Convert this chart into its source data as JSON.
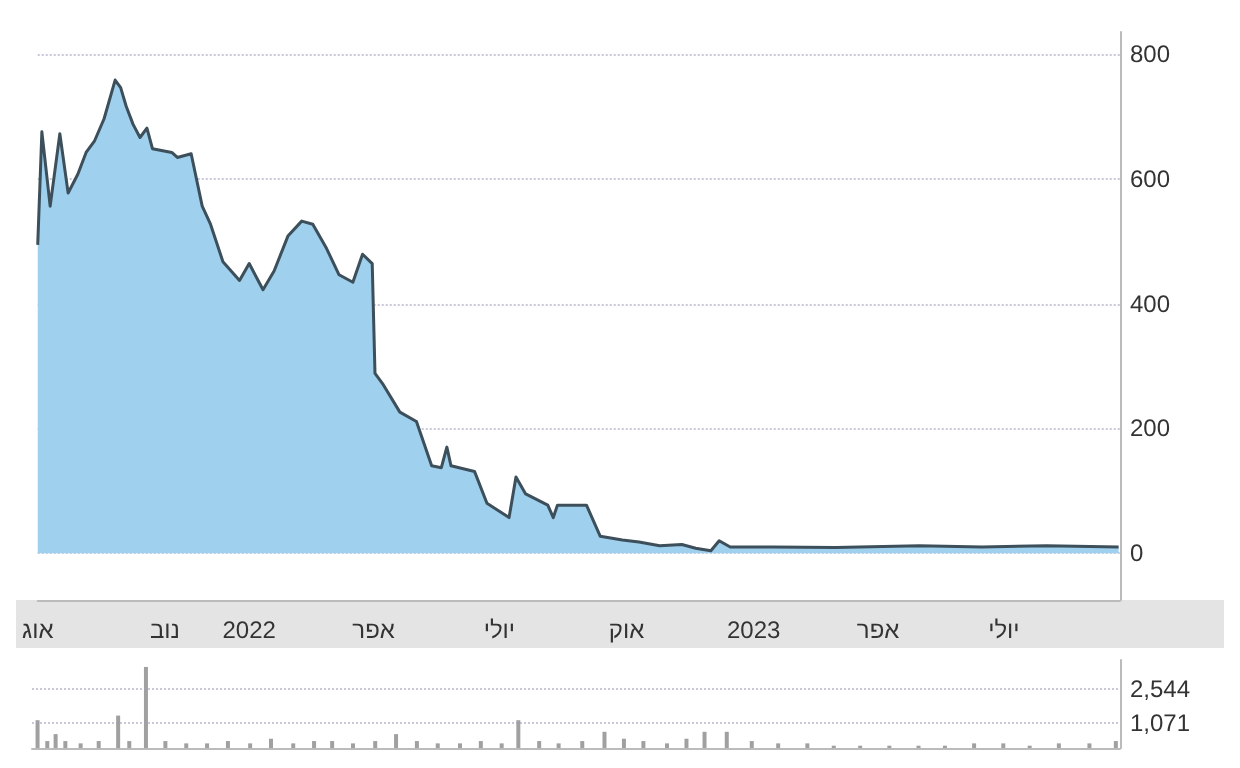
{
  "chart_data": [
    {
      "type": "area",
      "x": [
        "2021-08-01",
        "2021-08-04",
        "2021-08-10",
        "2021-08-17",
        "2021-08-23",
        "2021-08-30",
        "2021-09-05",
        "2021-09-11",
        "2021-09-18",
        "2021-09-26",
        "2021-09-30",
        "2021-10-04",
        "2021-10-09",
        "2021-10-14",
        "2021-10-19",
        "2021-10-23",
        "2021-11-06",
        "2021-11-10",
        "2021-11-20",
        "2021-11-28",
        "2021-12-04",
        "2021-12-13",
        "2021-12-25",
        "2022-01-01",
        "2022-01-11",
        "2022-01-19",
        "2022-01-29",
        "2022-02-08",
        "2022-02-16",
        "2022-02-26",
        "2022-03-07",
        "2022-03-17",
        "2022-03-24",
        "2022-03-31",
        "2022-04-02",
        "2022-04-08",
        "2022-04-20",
        "2022-05-02",
        "2022-05-13",
        "2022-05-20",
        "2022-05-24",
        "2022-05-27",
        "2022-06-13",
        "2022-06-22",
        "2022-07-08",
        "2022-07-13",
        "2022-07-20",
        "2022-08-05",
        "2022-08-09",
        "2022-08-12",
        "2022-09-02",
        "2022-09-12",
        "2022-09-28",
        "2022-10-10",
        "2022-10-25",
        "2022-11-10",
        "2022-11-20",
        "2022-12-01",
        "2022-12-07",
        "2022-12-15",
        "2023-01-15",
        "2023-03-01",
        "2023-05-01",
        "2023-06-15",
        "2023-08-01",
        "2023-09-22"
      ],
      "series": [
        {
          "color": "#9fd0ee",
          "values": [
            494,
            675,
            556,
            672,
            577,
            607,
            642,
            660,
            696,
            758,
            746,
            716,
            687,
            666,
            681,
            648,
            642,
            634,
            640,
            556,
            527,
            467,
            437,
            464,
            422,
            452,
            508,
            532,
            527,
            488,
            446,
            434,
            479,
            464,
            288,
            270,
            226,
            211,
            140,
            137,
            170,
            140,
            131,
            80,
            57,
            122,
            95,
            77,
            57,
            77,
            77,
            27,
            21,
            18,
            12,
            14,
            8,
            4,
            20,
            10,
            10,
            9,
            12,
            10,
            12,
            10
          ]
        }
      ],
      "xlim": [
        "2021-08-01",
        "2023-09-23"
      ],
      "xticks": [
        {
          "value": "2021-08-01",
          "label": "אוג"
        },
        {
          "value": "2021-11-01",
          "label": "נוב"
        },
        {
          "value": "2022-01-01",
          "label": "2022"
        },
        {
          "value": "2022-04-01",
          "label": "אפר"
        },
        {
          "value": "2022-07-01",
          "label": "יולי"
        },
        {
          "value": "2022-10-01",
          "label": "אוק"
        },
        {
          "value": "2023-01-01",
          "label": "2023"
        },
        {
          "value": "2023-04-01",
          "label": "אפר"
        },
        {
          "value": "2023-07-01",
          "label": "יולי"
        }
      ],
      "ylim": [
        -75,
        835
      ],
      "yticks": [
        0,
        200,
        400,
        600,
        800
      ],
      "grid": "y",
      "marker": "none",
      "line_style": "solid"
    },
    {
      "type": "bar",
      "x": [
        "2021-08-05",
        "2021-08-12",
        "2021-08-18",
        "2021-08-25",
        "2021-09-05",
        "2021-09-18",
        "2021-10-02",
        "2021-10-10",
        "2021-10-22",
        "2021-11-05",
        "2021-11-20",
        "2021-12-05",
        "2021-12-20",
        "2022-01-05",
        "2022-01-20",
        "2022-02-05",
        "2022-02-20",
        "2022-03-05",
        "2022-03-20",
        "2022-04-05",
        "2022-04-20",
        "2022-05-05",
        "2022-05-20",
        "2022-06-05",
        "2022-06-20",
        "2022-07-05",
        "2022-07-17",
        "2022-08-01",
        "2022-08-15",
        "2022-09-01",
        "2022-09-17",
        "2022-10-01",
        "2022-10-15",
        "2022-11-01",
        "2022-11-15",
        "2022-11-28",
        "2022-12-14",
        "2023-01-01",
        "2023-01-20",
        "2023-02-10",
        "2023-03-01",
        "2023-03-20",
        "2023-04-10",
        "2023-05-01",
        "2023-05-20",
        "2023-06-10",
        "2023-07-01",
        "2023-07-20",
        "2023-08-10",
        "2023-09-01",
        "2023-09-20"
      ],
      "series": [
        {
          "color": "#a0a0a0",
          "values": [
            1200,
            300,
            600,
            300,
            200,
            300,
            1400,
            300,
            3500,
            300,
            200,
            200,
            300,
            200,
            400,
            200,
            300,
            300,
            200,
            300,
            600,
            300,
            200,
            200,
            300,
            200,
            1200,
            300,
            200,
            300,
            700,
            400,
            300,
            200,
            400,
            700,
            700,
            300,
            200,
            200,
            100,
            100,
            100,
            100,
            100,
            200,
            200,
            100,
            200,
            200,
            300
          ]
        }
      ],
      "xlim": [
        "2021-08-01",
        "2023-09-23"
      ],
      "ylim": [
        0,
        3800
      ],
      "yticks": [
        {
          "value": 1071,
          "label": "1,071"
        },
        {
          "value": 2544,
          "label": "2,544"
        }
      ],
      "grid": "y",
      "tick_labels": "y"
    }
  ]
}
